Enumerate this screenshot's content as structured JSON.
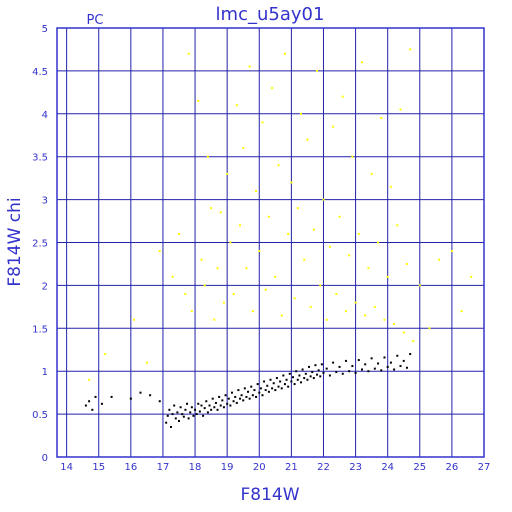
{
  "chart_data": {
    "type": "scatter",
    "title": "lmc_u5ay01",
    "corner_label": "PC",
    "xlabel": "F814W",
    "ylabel": "F814W  chi",
    "xlim": [
      13.7,
      27
    ],
    "ylim": [
      0,
      5
    ],
    "x_ticks": [
      14,
      15,
      16,
      17,
      18,
      19,
      20,
      21,
      22,
      23,
      24,
      25,
      26,
      27
    ],
    "y_ticks": [
      0,
      0.5,
      1,
      1.5,
      2,
      2.5,
      3,
      3.5,
      4,
      4.5,
      5
    ],
    "x_tick_labels": [
      "14",
      "15",
      "16",
      "17",
      "18",
      "19",
      "20",
      "21",
      "22",
      "23",
      "24",
      "25",
      "26",
      "27"
    ],
    "y_tick_labels": [
      "0",
      "0.5",
      "1",
      "1.5",
      "2",
      "2.5",
      "3",
      "3.5",
      "4",
      "4.5",
      "5"
    ],
    "grid": true,
    "colors": {
      "axis": "#3333cc",
      "grid": "#2222aa",
      "series_selected": "#000000",
      "series_rejected": "#ffff00"
    },
    "series": [
      {
        "color": "#000000",
        "points": [
          [
            14.6,
            0.6
          ],
          [
            14.7,
            0.65
          ],
          [
            14.8,
            0.55
          ],
          [
            14.9,
            0.7
          ],
          [
            15.1,
            0.62
          ],
          [
            15.4,
            0.7
          ],
          [
            16.0,
            0.68
          ],
          [
            16.3,
            0.75
          ],
          [
            16.6,
            0.72
          ],
          [
            16.9,
            0.65
          ],
          [
            17.1,
            0.4
          ],
          [
            17.15,
            0.48
          ],
          [
            17.2,
            0.55
          ],
          [
            17.25,
            0.35
          ],
          [
            17.3,
            0.5
          ],
          [
            17.35,
            0.6
          ],
          [
            17.4,
            0.45
          ],
          [
            17.45,
            0.52
          ],
          [
            17.5,
            0.42
          ],
          [
            17.55,
            0.58
          ],
          [
            17.6,
            0.5
          ],
          [
            17.65,
            0.47
          ],
          [
            17.7,
            0.55
          ],
          [
            17.75,
            0.62
          ],
          [
            17.8,
            0.45
          ],
          [
            17.85,
            0.52
          ],
          [
            17.9,
            0.58
          ],
          [
            17.95,
            0.48
          ],
          [
            18.0,
            0.55
          ],
          [
            18.05,
            0.5
          ],
          [
            18.1,
            0.62
          ],
          [
            18.15,
            0.53
          ],
          [
            18.2,
            0.6
          ],
          [
            18.25,
            0.48
          ],
          [
            18.3,
            0.57
          ],
          [
            18.35,
            0.65
          ],
          [
            18.4,
            0.52
          ],
          [
            18.45,
            0.6
          ],
          [
            18.5,
            0.55
          ],
          [
            18.55,
            0.68
          ],
          [
            18.6,
            0.58
          ],
          [
            18.65,
            0.63
          ],
          [
            18.7,
            0.55
          ],
          [
            18.75,
            0.7
          ],
          [
            18.8,
            0.6
          ],
          [
            18.85,
            0.66
          ],
          [
            18.9,
            0.58
          ],
          [
            18.95,
            0.72
          ],
          [
            19.0,
            0.62
          ],
          [
            19.05,
            0.68
          ],
          [
            19.1,
            0.6
          ],
          [
            19.15,
            0.75
          ],
          [
            19.2,
            0.65
          ],
          [
            19.25,
            0.7
          ],
          [
            19.3,
            0.63
          ],
          [
            19.35,
            0.78
          ],
          [
            19.4,
            0.68
          ],
          [
            19.45,
            0.72
          ],
          [
            19.5,
            0.66
          ],
          [
            19.55,
            0.8
          ],
          [
            19.6,
            0.7
          ],
          [
            19.65,
            0.76
          ],
          [
            19.7,
            0.68
          ],
          [
            19.75,
            0.82
          ],
          [
            19.8,
            0.72
          ],
          [
            19.85,
            0.78
          ],
          [
            19.9,
            0.7
          ],
          [
            19.95,
            0.85
          ],
          [
            20.0,
            0.75
          ],
          [
            20.05,
            0.8
          ],
          [
            20.1,
            0.72
          ],
          [
            20.15,
            0.88
          ],
          [
            20.2,
            0.78
          ],
          [
            20.25,
            0.83
          ],
          [
            20.3,
            0.76
          ],
          [
            20.35,
            0.9
          ],
          [
            20.4,
            0.8
          ],
          [
            20.45,
            0.86
          ],
          [
            20.5,
            0.78
          ],
          [
            20.55,
            0.92
          ],
          [
            20.6,
            0.82
          ],
          [
            20.65,
            0.88
          ],
          [
            20.7,
            0.8
          ],
          [
            20.75,
            0.95
          ],
          [
            20.8,
            0.85
          ],
          [
            20.85,
            0.9
          ],
          [
            20.9,
            0.82
          ],
          [
            20.95,
            0.97
          ],
          [
            21.0,
            0.88
          ],
          [
            21.05,
            0.93
          ],
          [
            21.1,
            0.85
          ],
          [
            21.15,
            1.0
          ],
          [
            21.2,
            0.9
          ],
          [
            21.25,
            0.95
          ],
          [
            21.3,
            0.87
          ],
          [
            21.35,
            1.02
          ],
          [
            21.4,
            0.92
          ],
          [
            21.45,
            0.97
          ],
          [
            21.5,
            0.9
          ],
          [
            21.55,
            1.05
          ],
          [
            21.6,
            0.94
          ],
          [
            21.65,
            0.99
          ],
          [
            21.7,
            0.92
          ],
          [
            21.75,
            1.07
          ],
          [
            21.8,
            0.96
          ],
          [
            21.85,
            1.01
          ],
          [
            21.9,
            0.94
          ],
          [
            21.95,
            1.08
          ],
          [
            22.0,
            0.98
          ],
          [
            22.1,
            1.03
          ],
          [
            22.2,
            0.95
          ],
          [
            22.3,
            1.1
          ],
          [
            22.4,
            0.99
          ],
          [
            22.5,
            1.05
          ],
          [
            22.6,
            0.97
          ],
          [
            22.7,
            1.12
          ],
          [
            22.8,
            1.0
          ],
          [
            22.9,
            1.06
          ],
          [
            23.0,
            0.98
          ],
          [
            23.1,
            1.13
          ],
          [
            23.2,
            1.02
          ],
          [
            23.3,
            1.08
          ],
          [
            23.4,
            1.0
          ],
          [
            23.5,
            1.15
          ],
          [
            23.6,
            1.03
          ],
          [
            23.7,
            1.09
          ],
          [
            23.8,
            1.01
          ],
          [
            23.9,
            1.16
          ],
          [
            24.0,
            1.05
          ],
          [
            24.1,
            1.1
          ],
          [
            24.2,
            1.02
          ],
          [
            24.3,
            1.18
          ],
          [
            24.4,
            1.06
          ],
          [
            24.5,
            1.12
          ],
          [
            24.6,
            1.04
          ],
          [
            24.7,
            1.2
          ]
        ]
      },
      {
        "color": "#ffff00",
        "points": [
          [
            14.7,
            0.9
          ],
          [
            15.2,
            1.2
          ],
          [
            16.1,
            1.6
          ],
          [
            16.5,
            1.1
          ],
          [
            16.9,
            2.4
          ],
          [
            17.3,
            2.1
          ],
          [
            17.5,
            2.6
          ],
          [
            17.7,
            1.9
          ],
          [
            17.8,
            4.7
          ],
          [
            17.9,
            1.7
          ],
          [
            18.1,
            4.15
          ],
          [
            18.2,
            2.3
          ],
          [
            18.3,
            2.0
          ],
          [
            18.4,
            3.5
          ],
          [
            18.5,
            2.9
          ],
          [
            18.6,
            1.6
          ],
          [
            18.7,
            2.2
          ],
          [
            18.8,
            2.85
          ],
          [
            18.9,
            1.8
          ],
          [
            19.0,
            3.3
          ],
          [
            19.1,
            2.5
          ],
          [
            19.2,
            1.9
          ],
          [
            19.3,
            4.1
          ],
          [
            19.4,
            2.7
          ],
          [
            19.5,
            3.6
          ],
          [
            19.6,
            2.2
          ],
          [
            19.7,
            4.55
          ],
          [
            19.8,
            1.7
          ],
          [
            19.9,
            3.1
          ],
          [
            20.0,
            2.4
          ],
          [
            20.1,
            3.9
          ],
          [
            20.2,
            1.95
          ],
          [
            20.3,
            2.8
          ],
          [
            20.4,
            4.3
          ],
          [
            20.5,
            2.1
          ],
          [
            20.6,
            3.4
          ],
          [
            20.7,
            1.65
          ],
          [
            20.8,
            4.7
          ],
          [
            20.9,
            2.6
          ],
          [
            21.0,
            3.2
          ],
          [
            21.1,
            1.85
          ],
          [
            21.2,
            2.9
          ],
          [
            21.3,
            4.0
          ],
          [
            21.4,
            2.3
          ],
          [
            21.5,
            3.7
          ],
          [
            21.6,
            1.75
          ],
          [
            21.7,
            2.65
          ],
          [
            21.8,
            4.5
          ],
          [
            21.9,
            2.0
          ],
          [
            22.0,
            3.0
          ],
          [
            22.1,
            1.6
          ],
          [
            22.2,
            2.45
          ],
          [
            22.3,
            3.85
          ],
          [
            22.4,
            1.9
          ],
          [
            22.5,
            2.8
          ],
          [
            22.6,
            4.2
          ],
          [
            22.7,
            1.7
          ],
          [
            22.8,
            2.35
          ],
          [
            22.9,
            3.5
          ],
          [
            23.0,
            1.8
          ],
          [
            23.1,
            2.6
          ],
          [
            23.2,
            4.6
          ],
          [
            23.3,
            1.65
          ],
          [
            23.4,
            2.2
          ],
          [
            23.5,
            3.3
          ],
          [
            23.6,
            1.75
          ],
          [
            23.7,
            2.5
          ],
          [
            23.8,
            3.95
          ],
          [
            23.9,
            1.6
          ],
          [
            24.0,
            2.1
          ],
          [
            24.1,
            3.15
          ],
          [
            24.2,
            1.55
          ],
          [
            24.3,
            2.7
          ],
          [
            24.4,
            4.05
          ],
          [
            24.5,
            1.45
          ],
          [
            24.6,
            2.25
          ],
          [
            24.7,
            4.75
          ],
          [
            24.8,
            1.35
          ],
          [
            25.0,
            2.0
          ],
          [
            25.3,
            1.5
          ],
          [
            25.6,
            2.3
          ],
          [
            26.0,
            2.4
          ],
          [
            26.3,
            1.7
          ],
          [
            26.6,
            2.1
          ]
        ]
      }
    ]
  }
}
